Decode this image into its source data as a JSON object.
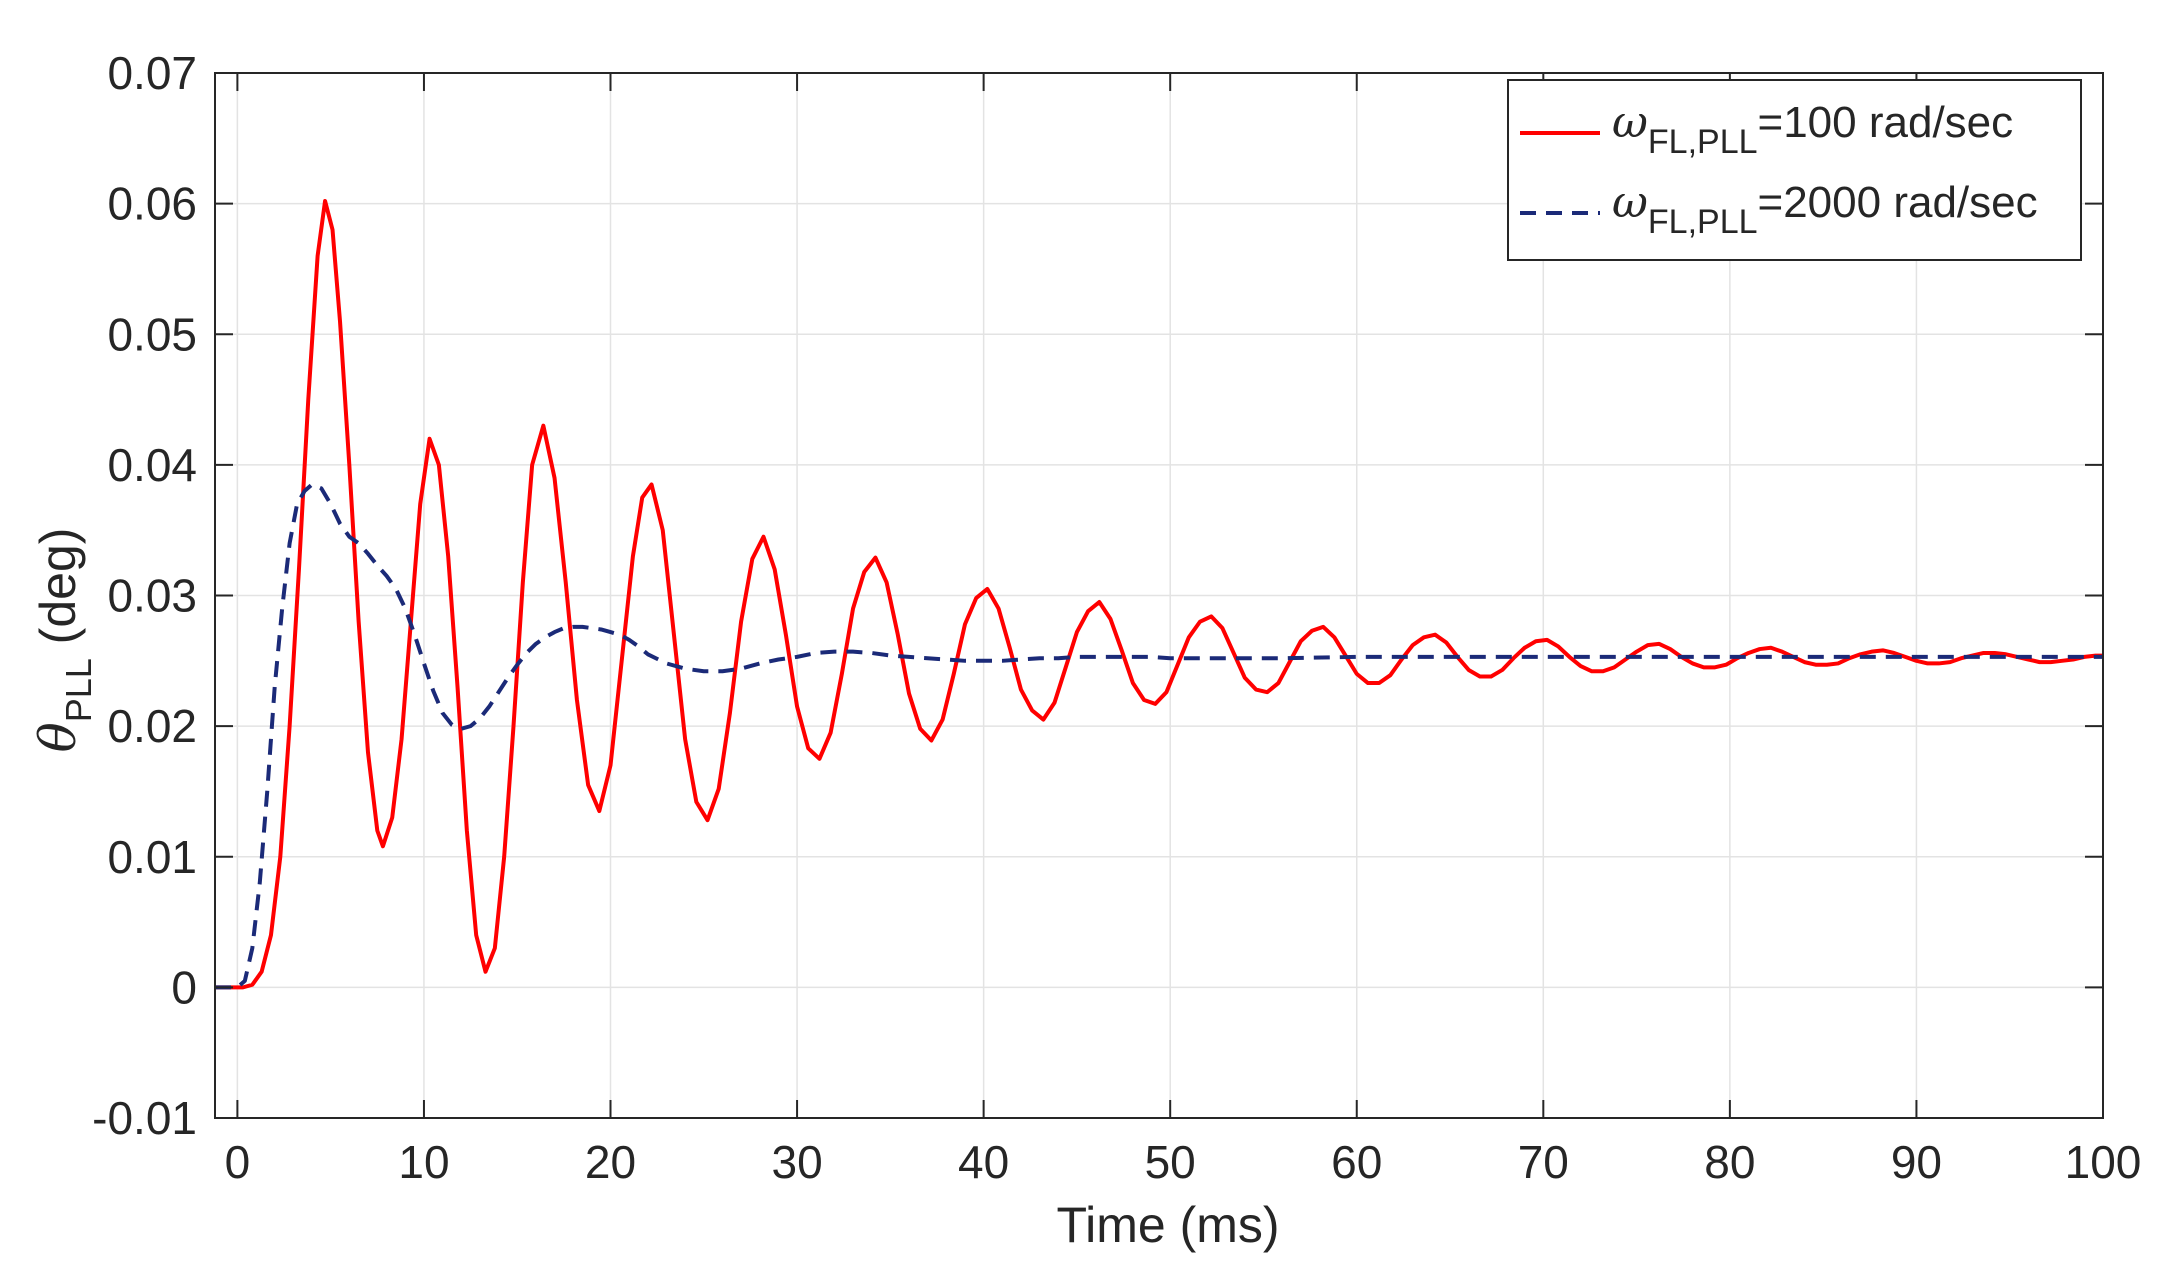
{
  "chart_data": {
    "type": "line",
    "title": "",
    "xlabel": "Time (ms)",
    "ylabel": {
      "symbol": "θ",
      "subscript": "PLL",
      "suffix": " (deg)"
    },
    "xlim": [
      -1.2,
      100
    ],
    "ylim": [
      -0.01,
      0.07
    ],
    "xticks": [
      0,
      10,
      20,
      30,
      40,
      50,
      60,
      70,
      80,
      90,
      100
    ],
    "xtick_labels": [
      "0",
      "10",
      "20",
      "30",
      "40",
      "50",
      "60",
      "70",
      "80",
      "90",
      "100"
    ],
    "yticks": [
      -0.01,
      0,
      0.01,
      0.02,
      0.03,
      0.04,
      0.05,
      0.06,
      0.07
    ],
    "ytick_labels": [
      "-0.01",
      "0",
      "0.01",
      "0.02",
      "0.03",
      "0.04",
      "0.05",
      "0.06",
      "0.07"
    ],
    "grid": true,
    "legend_position": "top-right",
    "series": [
      {
        "name": "ωFL,PLL=100 rad/sec",
        "legend": {
          "symbol": "ω",
          "subscript": "FL,PLL",
          "suffix": "=100 rad/sec"
        },
        "color": "#ff0000",
        "style": "solid",
        "points": [
          [
            -1.2,
            0
          ],
          [
            0.3,
            0
          ],
          [
            0.8,
            0.0002
          ],
          [
            1.3,
            0.0012
          ],
          [
            1.8,
            0.004
          ],
          [
            2.3,
            0.01
          ],
          [
            2.8,
            0.02
          ],
          [
            3.3,
            0.032
          ],
          [
            3.8,
            0.045
          ],
          [
            4.3,
            0.056
          ],
          [
            4.7,
            0.0602
          ],
          [
            5.1,
            0.058
          ],
          [
            5.5,
            0.051
          ],
          [
            6.0,
            0.04
          ],
          [
            6.5,
            0.028
          ],
          [
            7.0,
            0.018
          ],
          [
            7.5,
            0.012
          ],
          [
            7.8,
            0.0108
          ],
          [
            8.3,
            0.013
          ],
          [
            8.8,
            0.019
          ],
          [
            9.3,
            0.028
          ],
          [
            9.8,
            0.037
          ],
          [
            10.3,
            0.042
          ],
          [
            10.8,
            0.04
          ],
          [
            11.3,
            0.033
          ],
          [
            11.8,
            0.023
          ],
          [
            12.3,
            0.012
          ],
          [
            12.8,
            0.004
          ],
          [
            13.3,
            0.0012
          ],
          [
            13.8,
            0.003
          ],
          [
            14.3,
            0.01
          ],
          [
            14.8,
            0.02
          ],
          [
            15.3,
            0.031
          ],
          [
            15.8,
            0.04
          ],
          [
            16.4,
            0.043
          ],
          [
            17.0,
            0.039
          ],
          [
            17.6,
            0.031
          ],
          [
            18.2,
            0.022
          ],
          [
            18.8,
            0.0155
          ],
          [
            19.4,
            0.0135
          ],
          [
            20.0,
            0.017
          ],
          [
            20.6,
            0.025
          ],
          [
            21.2,
            0.033
          ],
          [
            21.7,
            0.0375
          ],
          [
            22.2,
            0.0385
          ],
          [
            22.8,
            0.035
          ],
          [
            23.4,
            0.027
          ],
          [
            24.0,
            0.019
          ],
          [
            24.6,
            0.0142
          ],
          [
            25.2,
            0.0128
          ],
          [
            25.8,
            0.0152
          ],
          [
            26.4,
            0.021
          ],
          [
            27.0,
            0.028
          ],
          [
            27.6,
            0.0328
          ],
          [
            28.2,
            0.0345
          ],
          [
            28.8,
            0.032
          ],
          [
            29.4,
            0.027
          ],
          [
            30.0,
            0.0215
          ],
          [
            30.6,
            0.0183
          ],
          [
            31.2,
            0.0175
          ],
          [
            31.8,
            0.0195
          ],
          [
            32.4,
            0.024
          ],
          [
            33.0,
            0.029
          ],
          [
            33.6,
            0.0318
          ],
          [
            34.2,
            0.0329
          ],
          [
            34.8,
            0.031
          ],
          [
            35.4,
            0.027
          ],
          [
            36.0,
            0.0225
          ],
          [
            36.6,
            0.0198
          ],
          [
            37.2,
            0.0189
          ],
          [
            37.8,
            0.0205
          ],
          [
            38.4,
            0.024
          ],
          [
            39.0,
            0.0278
          ],
          [
            39.6,
            0.0298
          ],
          [
            40.2,
            0.0305
          ],
          [
            40.8,
            0.029
          ],
          [
            41.4,
            0.026
          ],
          [
            42.0,
            0.0228
          ],
          [
            42.6,
            0.0212
          ],
          [
            43.2,
            0.0205
          ],
          [
            43.8,
            0.0218
          ],
          [
            44.4,
            0.0245
          ],
          [
            45.0,
            0.0272
          ],
          [
            45.6,
            0.0288
          ],
          [
            46.2,
            0.0295
          ],
          [
            46.8,
            0.0282
          ],
          [
            47.4,
            0.0258
          ],
          [
            48.0,
            0.0233
          ],
          [
            48.6,
            0.022
          ],
          [
            49.2,
            0.0217
          ],
          [
            49.8,
            0.0226
          ],
          [
            50.4,
            0.0247
          ],
          [
            51.0,
            0.0268
          ],
          [
            51.6,
            0.028
          ],
          [
            52.2,
            0.0284
          ],
          [
            52.8,
            0.0275
          ],
          [
            53.4,
            0.0256
          ],
          [
            54.0,
            0.0237
          ],
          [
            54.6,
            0.0228
          ],
          [
            55.2,
            0.0226
          ],
          [
            55.8,
            0.0233
          ],
          [
            56.4,
            0.0249
          ],
          [
            57.0,
            0.0265
          ],
          [
            57.6,
            0.0273
          ],
          [
            58.2,
            0.0276
          ],
          [
            58.8,
            0.0268
          ],
          [
            59.4,
            0.0254
          ],
          [
            60.0,
            0.024
          ],
          [
            60.6,
            0.0233
          ],
          [
            61.2,
            0.0233
          ],
          [
            61.8,
            0.0239
          ],
          [
            62.4,
            0.0251
          ],
          [
            63.0,
            0.0262
          ],
          [
            63.6,
            0.0268
          ],
          [
            64.2,
            0.027
          ],
          [
            64.8,
            0.0264
          ],
          [
            65.4,
            0.0253
          ],
          [
            66.0,
            0.0243
          ],
          [
            66.6,
            0.0238
          ],
          [
            67.2,
            0.0238
          ],
          [
            67.8,
            0.0243
          ],
          [
            68.4,
            0.0252
          ],
          [
            69.0,
            0.026
          ],
          [
            69.6,
            0.0265
          ],
          [
            70.2,
            0.0266
          ],
          [
            70.8,
            0.0261
          ],
          [
            71.4,
            0.0253
          ],
          [
            72.0,
            0.0246
          ],
          [
            72.6,
            0.0242
          ],
          [
            73.2,
            0.0242
          ],
          [
            73.8,
            0.0245
          ],
          [
            74.4,
            0.0251
          ],
          [
            75.0,
            0.0257
          ],
          [
            75.6,
            0.0262
          ],
          [
            76.2,
            0.0263
          ],
          [
            76.8,
            0.0259
          ],
          [
            77.4,
            0.0253
          ],
          [
            78.0,
            0.0248
          ],
          [
            78.6,
            0.0245
          ],
          [
            79.2,
            0.0245
          ],
          [
            79.8,
            0.0247
          ],
          [
            80.4,
            0.0252
          ],
          [
            81.0,
            0.0256
          ],
          [
            81.6,
            0.0259
          ],
          [
            82.2,
            0.026
          ],
          [
            82.8,
            0.0257
          ],
          [
            83.4,
            0.0253
          ],
          [
            84.0,
            0.0249
          ],
          [
            84.6,
            0.0247
          ],
          [
            85.2,
            0.0247
          ],
          [
            85.8,
            0.0248
          ],
          [
            86.4,
            0.0252
          ],
          [
            87.0,
            0.0255
          ],
          [
            87.6,
            0.0257
          ],
          [
            88.2,
            0.0258
          ],
          [
            88.8,
            0.0256
          ],
          [
            89.4,
            0.0253
          ],
          [
            90.0,
            0.025
          ],
          [
            90.6,
            0.0248
          ],
          [
            91.2,
            0.0248
          ],
          [
            91.8,
            0.0249
          ],
          [
            92.4,
            0.0252
          ],
          [
            93.0,
            0.0254
          ],
          [
            93.6,
            0.0256
          ],
          [
            94.2,
            0.0256
          ],
          [
            94.8,
            0.0255
          ],
          [
            95.4,
            0.0253
          ],
          [
            96.0,
            0.0251
          ],
          [
            96.6,
            0.0249
          ],
          [
            97.2,
            0.0249
          ],
          [
            97.8,
            0.025
          ],
          [
            98.4,
            0.0251
          ],
          [
            99.0,
            0.0253
          ],
          [
            99.6,
            0.0254
          ],
          [
            100,
            0.0254
          ]
        ]
      },
      {
        "name": "ωFL,PLL=2000 rad/sec",
        "legend": {
          "symbol": "ω",
          "subscript": "FL,PLL",
          "suffix": "=2000 rad/sec"
        },
        "color": "#1b2a78",
        "style": "dashed",
        "points": [
          [
            -1.2,
            0
          ],
          [
            0,
            0
          ],
          [
            0.4,
            0.0005
          ],
          [
            0.8,
            0.003
          ],
          [
            1.2,
            0.008
          ],
          [
            1.6,
            0.015
          ],
          [
            2.0,
            0.023
          ],
          [
            2.4,
            0.029
          ],
          [
            2.8,
            0.034
          ],
          [
            3.2,
            0.037
          ],
          [
            3.6,
            0.038
          ],
          [
            4.0,
            0.0385
          ],
          [
            4.5,
            0.0382
          ],
          [
            5.0,
            0.037
          ],
          [
            5.5,
            0.0355
          ],
          [
            6.0,
            0.0345
          ],
          [
            6.5,
            0.034
          ],
          [
            7.0,
            0.0332
          ],
          [
            7.5,
            0.0323
          ],
          [
            8.0,
            0.0315
          ],
          [
            8.5,
            0.0305
          ],
          [
            9.0,
            0.029
          ],
          [
            9.5,
            0.027
          ],
          [
            10.0,
            0.0248
          ],
          [
            10.5,
            0.0227
          ],
          [
            11.0,
            0.021
          ],
          [
            11.5,
            0.0201
          ],
          [
            12.0,
            0.0198
          ],
          [
            12.5,
            0.02
          ],
          [
            13.0,
            0.0206
          ],
          [
            13.5,
            0.0215
          ],
          [
            14.0,
            0.0226
          ],
          [
            14.5,
            0.0237
          ],
          [
            15.0,
            0.0247
          ],
          [
            15.5,
            0.0256
          ],
          [
            16.0,
            0.0263
          ],
          [
            16.5,
            0.0268
          ],
          [
            17.0,
            0.0272
          ],
          [
            17.5,
            0.0275
          ],
          [
            18.0,
            0.0276
          ],
          [
            18.5,
            0.0276
          ],
          [
            19.0,
            0.0275
          ],
          [
            19.5,
            0.0274
          ],
          [
            20.0,
            0.0272
          ],
          [
            20.5,
            0.027
          ],
          [
            21.0,
            0.0266
          ],
          [
            21.5,
            0.0261
          ],
          [
            22.0,
            0.0255
          ],
          [
            23.0,
            0.0248
          ],
          [
            24.0,
            0.0244
          ],
          [
            25.0,
            0.0242
          ],
          [
            26.0,
            0.0242
          ],
          [
            27.0,
            0.0244
          ],
          [
            28.0,
            0.0248
          ],
          [
            29.0,
            0.0251
          ],
          [
            30.0,
            0.0253
          ],
          [
            31.0,
            0.0256
          ],
          [
            32.0,
            0.0257
          ],
          [
            33.0,
            0.0257
          ],
          [
            34.0,
            0.0256
          ],
          [
            35.0,
            0.0254
          ],
          [
            36.0,
            0.0253
          ],
          [
            37.0,
            0.0252
          ],
          [
            38.0,
            0.0251
          ],
          [
            39.0,
            0.025
          ],
          [
            40.0,
            0.025
          ],
          [
            41.0,
            0.025
          ],
          [
            42.0,
            0.0251
          ],
          [
            43.0,
            0.0252
          ],
          [
            44.0,
            0.0252
          ],
          [
            45.0,
            0.0253
          ],
          [
            46.0,
            0.0253
          ],
          [
            47.0,
            0.0253
          ],
          [
            48.0,
            0.0253
          ],
          [
            49.0,
            0.0253
          ],
          [
            50.0,
            0.0252
          ],
          [
            52.0,
            0.0252
          ],
          [
            54.0,
            0.0252
          ],
          [
            56.0,
            0.0252
          ],
          [
            60.0,
            0.0253
          ],
          [
            65.0,
            0.0253
          ],
          [
            70.0,
            0.0253
          ],
          [
            75.0,
            0.0253
          ],
          [
            80.0,
            0.0253
          ],
          [
            85.0,
            0.0253
          ],
          [
            90.0,
            0.0253
          ],
          [
            95.0,
            0.0253
          ],
          [
            100,
            0.0253
          ]
        ]
      }
    ]
  }
}
